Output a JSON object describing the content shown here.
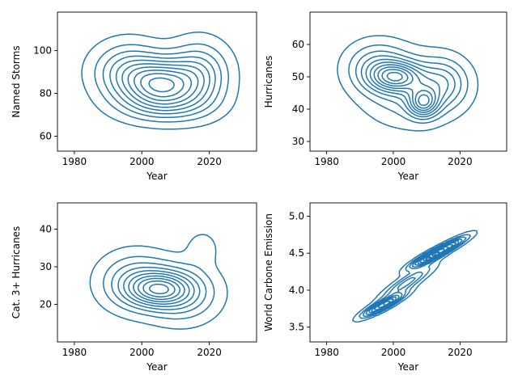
{
  "chart_data": [
    {
      "type": "kde-contour",
      "xlabel": "Year",
      "ylabel": "Named Storms",
      "xlim": [
        1975,
        2034
      ],
      "ylim": [
        53,
        118
      ],
      "xticks": [
        1980,
        2000,
        2020
      ],
      "yticks": [
        60,
        80,
        100
      ],
      "color": "#1f77b4",
      "density_components": [
        {
          "x": 2006,
          "y": 85,
          "sx": 7,
          "sy": 7,
          "w": 0.9
        },
        {
          "x": 1996,
          "y": 90,
          "sx": 7,
          "sy": 9,
          "w": 0.5
        },
        {
          "x": 2017,
          "y": 89,
          "sx": 6,
          "sy": 10,
          "w": 0.5
        },
        {
          "x": 2007,
          "y": 75,
          "sx": 9,
          "sy": 6,
          "w": 0.4
        }
      ]
    },
    {
      "type": "kde-contour",
      "xlabel": "Year",
      "ylabel": "Hurricanes",
      "xlim": [
        1975,
        2034
      ],
      "ylim": [
        27,
        70
      ],
      "xticks": [
        1980,
        2000,
        2020
      ],
      "yticks": [
        30,
        40,
        50,
        60
      ],
      "color": "#1f77b4",
      "density_components": [
        {
          "x": 2001,
          "y": 50,
          "sx": 5,
          "sy": 3,
          "w": 0.9
        },
        {
          "x": 2009,
          "y": 42,
          "sx": 3,
          "sy": 3,
          "w": 0.9
        },
        {
          "x": 1995,
          "y": 53,
          "sx": 6,
          "sy": 5,
          "w": 0.5
        },
        {
          "x": 2015,
          "y": 48,
          "sx": 5,
          "sy": 5,
          "w": 0.5
        },
        {
          "x": 2005,
          "y": 46,
          "sx": 9,
          "sy": 7,
          "w": 0.4
        }
      ]
    },
    {
      "type": "kde-contour",
      "xlabel": "Year",
      "ylabel": "Cat. 3+ Hurricanes",
      "xlim": [
        1975,
        2034
      ],
      "ylim": [
        10,
        47
      ],
      "xticks": [
        1980,
        2000,
        2020
      ],
      "yticks": [
        20,
        30,
        40
      ],
      "color": "#1f77b4",
      "density_components": [
        {
          "x": 2005,
          "y": 24,
          "sx": 6,
          "sy": 3,
          "w": 1.0
        },
        {
          "x": 1998,
          "y": 26,
          "sx": 7,
          "sy": 5,
          "w": 0.6
        },
        {
          "x": 2012,
          "y": 23,
          "sx": 7,
          "sy": 5,
          "w": 0.6
        },
        {
          "x": 2018,
          "y": 35,
          "sx": 3,
          "sy": 3,
          "w": 0.2
        }
      ]
    },
    {
      "type": "kde-contour",
      "xlabel": "Year",
      "ylabel": "World Carbone Emission",
      "xlim": [
        1975,
        2034
      ],
      "ylim": [
        3.3,
        5.18
      ],
      "xticks": [
        1980,
        2000,
        2020
      ],
      "yticks": [
        3.5,
        4.0,
        4.5,
        5.0
      ],
      "color": "#1f77b4",
      "density_components": [
        {
          "x": 1997,
          "y": 3.8,
          "sx": 4,
          "sy": 0.1,
          "w": 1.0
        },
        {
          "x": 2011,
          "y": 4.45,
          "sx": 4,
          "sy": 0.1,
          "w": 1.0
        },
        {
          "x": 2017,
          "y": 4.6,
          "sx": 4,
          "sy": 0.1,
          "w": 0.6
        },
        {
          "x": 2004,
          "y": 4.1,
          "sx": 5,
          "sy": 0.15,
          "w": 0.5
        }
      ],
      "correlation": 0.9
    }
  ]
}
